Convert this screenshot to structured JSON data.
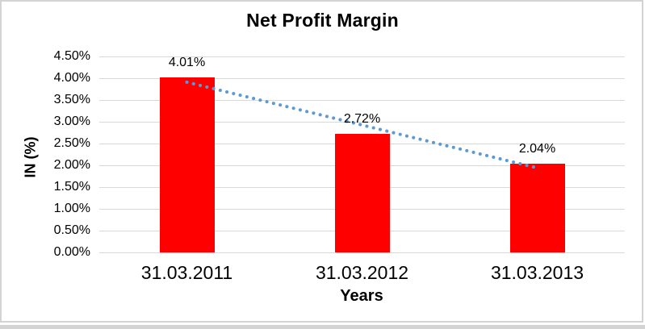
{
  "chart_data": {
    "type": "bar",
    "title": "Net Profit Margin",
    "xlabel": "Years",
    "ylabel": "IN (%)",
    "categories": [
      "31.03.2011",
      "31.03.2012",
      "31.03.2013"
    ],
    "series": [
      {
        "name": "Net Profit Margin",
        "color": "#FF0000",
        "values": [
          4.01,
          2.72,
          2.04
        ],
        "labels": [
          "4.01%",
          "2.72%",
          "2.04%"
        ]
      }
    ],
    "ylim": [
      0,
      4.5
    ],
    "ytick_step": 0.5,
    "ytick_labels": [
      "0.00%",
      "0.50%",
      "1.00%",
      "1.50%",
      "2.00%",
      "2.50%",
      "3.00%",
      "3.50%",
      "4.00%",
      "4.50%"
    ],
    "grid": true,
    "gridline_color": "#D9D9D9",
    "legend": "none",
    "trendline": {
      "type": "linear",
      "style": "dotted",
      "color": "#5B9BD5",
      "start": {
        "category_index": 0,
        "value": 3.91
      },
      "end": {
        "category_index": 2,
        "value": 1.94
      }
    }
  },
  "frame": {
    "border_color": "#D3D3D3"
  }
}
